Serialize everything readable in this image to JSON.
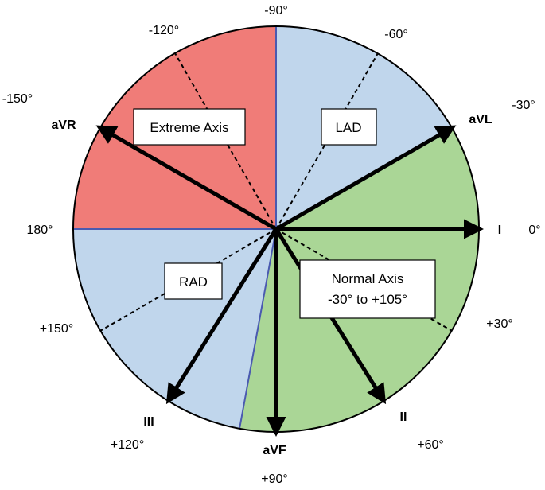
{
  "colors": {
    "extreme": "#f07c78",
    "lad": "#c0d6ec",
    "rad": "#c0d6ec",
    "normal": "#aad696",
    "border": "#000000",
    "divider": "#4a5ab0"
  },
  "degree_labels": {
    "m90": "-90°",
    "m120": "-120°",
    "m60": "-60°",
    "m150": "-150°",
    "m30": "-30°",
    "d180": "180°",
    "d0": "0°",
    "p150": "+150°",
    "p30": "+30°",
    "p120": "+120°",
    "p60": "+60°",
    "p90": "+90°"
  },
  "lead_labels": {
    "aVR": "aVR",
    "aVL": "aVL",
    "I": "I",
    "III": "III",
    "II": "II",
    "aVF": "aVF"
  },
  "regions": {
    "extreme": "Extreme Axis",
    "lad": "LAD",
    "rad": "RAD",
    "normal_line1": "Normal Axis",
    "normal_line2": "-30° to +105°"
  }
}
